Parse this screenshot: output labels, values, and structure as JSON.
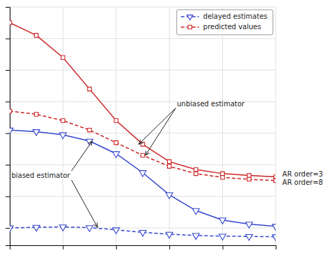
{
  "chart_data": {
    "type": "line",
    "x": [
      0,
      1,
      2,
      3,
      4,
      5,
      6,
      7,
      8,
      9,
      10
    ],
    "series": [
      {
        "name": "predicted values",
        "color": "#cc2222",
        "line_style": "solid",
        "marker": "square",
        "values": [
          5.5,
          5.1,
          4.4,
          3.4,
          2.4,
          1.65,
          1.1,
          0.85,
          0.72,
          0.66,
          0.62
        ]
      },
      {
        "name": "predicted values",
        "color": "#cc2222",
        "line_style": "dashed",
        "marker": "square",
        "values": [
          2.7,
          2.6,
          2.4,
          2.1,
          1.7,
          1.3,
          0.95,
          0.72,
          0.6,
          0.54,
          0.5
        ]
      },
      {
        "name": "delayed estimates",
        "color": "#3344cc",
        "line_style": "solid",
        "marker": "triangle-down",
        "values": [
          2.1,
          2.05,
          1.95,
          1.75,
          1.35,
          0.75,
          0.05,
          -0.45,
          -0.75,
          -0.88,
          -0.95
        ]
      },
      {
        "name": "delayed estimates",
        "color": "#3344cc",
        "line_style": "dashed",
        "marker": "triangle-down",
        "values": [
          -1.0,
          -0.98,
          -0.97,
          -0.99,
          -1.06,
          -1.14,
          -1.2,
          -1.24,
          -1.26,
          -1.27,
          -1.28
        ]
      }
    ],
    "xlim": [
      0.0,
      10.0
    ],
    "ylim": [
      -1.55,
      6.0
    ],
    "xticks": [
      0,
      2,
      4,
      6,
      8,
      10
    ],
    "yticks": [
      -1,
      0,
      1,
      2,
      3,
      4,
      5,
      6
    ],
    "grid": true,
    "legend": "upper right",
    "tick_labels": false,
    "annotations": [
      {
        "text": "unbiased estimator",
        "x": [
          4.85,
          5.1
        ],
        "y": [
          1.65,
          1.3
        ]
      },
      {
        "text": "biased estimator",
        "x": [
          3.1,
          3.3
        ],
        "y": [
          1.75,
          -0.98
        ]
      },
      {
        "text": "AR order=3",
        "x": 10.25,
        "y": 0.62
      },
      {
        "text": "AR order=8",
        "x": 10.25,
        "y": 0.5
      }
    ]
  }
}
